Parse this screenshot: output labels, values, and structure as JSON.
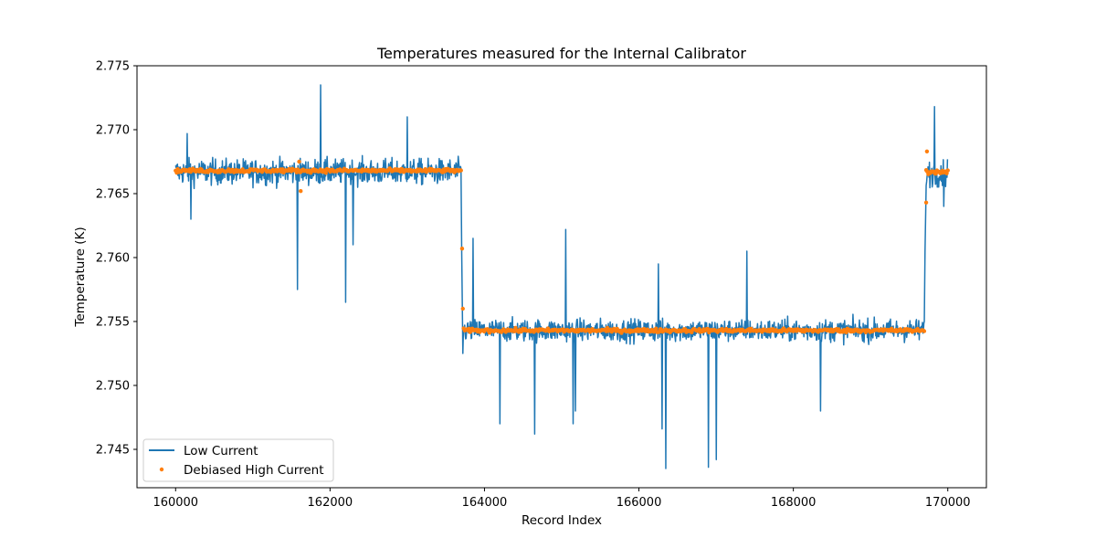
{
  "chart_data": {
    "type": "line",
    "title": "Temperatures measured for the Internal Calibrator",
    "xlabel": "Record Index",
    "ylabel": "Temperature (K)",
    "xlim": [
      159500,
      170500
    ],
    "ylim": [
      2.742,
      2.775
    ],
    "xticks": [
      160000,
      162000,
      164000,
      166000,
      168000,
      170000
    ],
    "xtick_labels": [
      "160000",
      "162000",
      "164000",
      "166000",
      "168000",
      "170000"
    ],
    "yticks": [
      2.745,
      2.75,
      2.755,
      2.76,
      2.765,
      2.77,
      2.775
    ],
    "ytick_labels": [
      "2.745",
      "2.750",
      "2.755",
      "2.760",
      "2.765",
      "2.770",
      "2.775"
    ],
    "grid": false,
    "legend_position": "lower-left",
    "series": [
      {
        "name": "Low Current",
        "kind": "line",
        "color": "#1f77b4",
        "segments": [
          {
            "x_start": 160000,
            "x_end": 163700,
            "mean": 2.7667,
            "band_low": 2.7652,
            "band_high": 2.7683
          },
          {
            "x_start": 163720,
            "x_end": 169700,
            "mean": 2.7543,
            "band_low": 2.7528,
            "band_high": 2.7555
          },
          {
            "x_start": 169720,
            "x_end": 170000,
            "mean": 2.7666,
            "band_low": 2.765,
            "band_high": 2.7683
          }
        ],
        "spikes": [
          {
            "x": 160150,
            "y": 2.7697
          },
          {
            "x": 160200,
            "y": 2.763
          },
          {
            "x": 161580,
            "y": 2.7575
          },
          {
            "x": 161880,
            "y": 2.7735
          },
          {
            "x": 162200,
            "y": 2.7565
          },
          {
            "x": 162300,
            "y": 2.761
          },
          {
            "x": 163000,
            "y": 2.771
          },
          {
            "x": 163720,
            "y": 2.7525
          },
          {
            "x": 163850,
            "y": 2.7615
          },
          {
            "x": 164200,
            "y": 2.747
          },
          {
            "x": 164650,
            "y": 2.7462
          },
          {
            "x": 165050,
            "y": 2.7622
          },
          {
            "x": 165150,
            "y": 2.747
          },
          {
            "x": 165180,
            "y": 2.748
          },
          {
            "x": 166250,
            "y": 2.7595
          },
          {
            "x": 166300,
            "y": 2.7466
          },
          {
            "x": 166350,
            "y": 2.7435
          },
          {
            "x": 166900,
            "y": 2.7436
          },
          {
            "x": 167000,
            "y": 2.7442
          },
          {
            "x": 167400,
            "y": 2.7605
          },
          {
            "x": 168350,
            "y": 2.748
          },
          {
            "x": 169830,
            "y": 2.7718
          },
          {
            "x": 169950,
            "y": 2.764
          }
        ]
      },
      {
        "name": "Debiased High Current",
        "kind": "scatter",
        "color": "#ff7f0e",
        "segments": [
          {
            "x_start": 160000,
            "x_end": 163700,
            "mean": 2.7668,
            "spread": 0.00025
          },
          {
            "x_start": 163730,
            "x_end": 169700,
            "mean": 2.7543,
            "spread": 0.00025
          },
          {
            "x_start": 169720,
            "x_end": 170000,
            "mean": 2.7667,
            "spread": 0.00025
          }
        ],
        "outliers": [
          {
            "x": 161600,
            "y": 2.7675
          },
          {
            "x": 161620,
            "y": 2.7652
          },
          {
            "x": 163710,
            "y": 2.7607
          },
          {
            "x": 163720,
            "y": 2.756
          },
          {
            "x": 169720,
            "y": 2.7643
          },
          {
            "x": 169730,
            "y": 2.7683
          }
        ]
      }
    ]
  }
}
